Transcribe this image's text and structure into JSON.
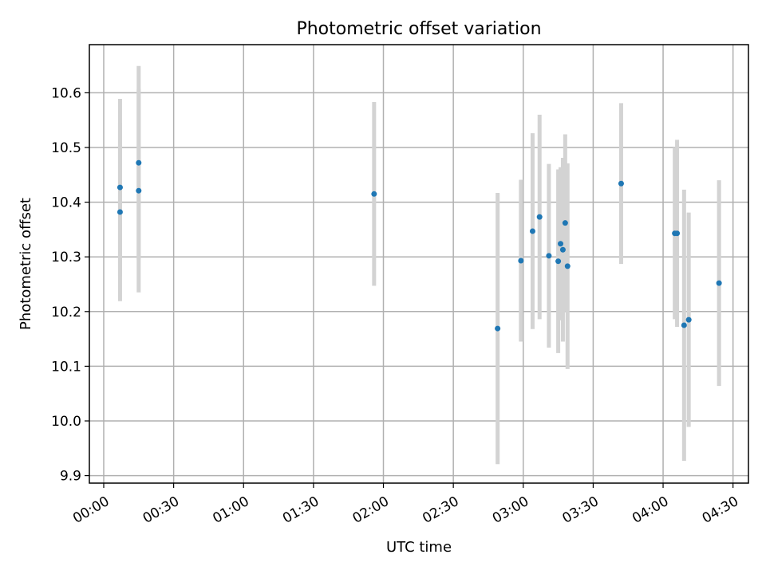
{
  "chart_data": {
    "type": "scatter",
    "title": "Photometric offset variation",
    "xlabel": "UTC time",
    "ylabel": "Photometric offset",
    "xlim": [
      "00:00",
      "04:30"
    ],
    "ylim": [
      9.9,
      10.68
    ],
    "grid": true,
    "x_ticks": [
      "00:00",
      "00:30",
      "01:00",
      "01:30",
      "02:00",
      "02:30",
      "03:00",
      "03:30",
      "04:00",
      "04:30"
    ],
    "y_ticks": [
      "9.9",
      "10.0",
      "10.1",
      "10.2",
      "10.3",
      "10.4",
      "10.5",
      "10.6"
    ],
    "colors": {
      "marker": "#1f77b4",
      "errorbar": "#d3d3d3",
      "grid": "#b0b0b0"
    },
    "series": [
      {
        "points": [
          {
            "x": "00:07",
            "y": 10.427,
            "err": 0.162
          },
          {
            "x": "00:07",
            "y": 10.382,
            "err": 0.163
          },
          {
            "x": "00:15",
            "y": 10.472,
            "err": 0.177
          },
          {
            "x": "00:15",
            "y": 10.421,
            "err": 0.186
          },
          {
            "x": "01:56",
            "y": 10.415,
            "err": 0.168
          },
          {
            "x": "02:49",
            "y": 10.169,
            "err": 0.248
          },
          {
            "x": "02:59",
            "y": 10.293,
            "err": 0.148
          },
          {
            "x": "03:04",
            "y": 10.347,
            "err": 0.179
          },
          {
            "x": "03:07",
            "y": 10.373,
            "err": 0.187
          },
          {
            "x": "03:11",
            "y": 10.302,
            "err": 0.168
          },
          {
            "x": "03:15",
            "y": 10.292,
            "err": 0.168
          },
          {
            "x": "03:16",
            "y": 10.324,
            "err": 0.14
          },
          {
            "x": "03:17",
            "y": 10.313,
            "err": 0.168
          },
          {
            "x": "03:18",
            "y": 10.362,
            "err": 0.162
          },
          {
            "x": "03:19",
            "y": 10.283,
            "err": 0.188
          },
          {
            "x": "03:42",
            "y": 10.434,
            "err": 0.147
          },
          {
            "x": "04:05",
            "y": 10.343,
            "err": 0.157
          },
          {
            "x": "04:06",
            "y": 10.343,
            "err": 0.171
          },
          {
            "x": "04:09",
            "y": 10.175,
            "err": 0.248
          },
          {
            "x": "04:11",
            "y": 10.185,
            "err": 0.196
          },
          {
            "x": "04:24",
            "y": 10.252,
            "err": 0.188
          }
        ]
      }
    ]
  }
}
